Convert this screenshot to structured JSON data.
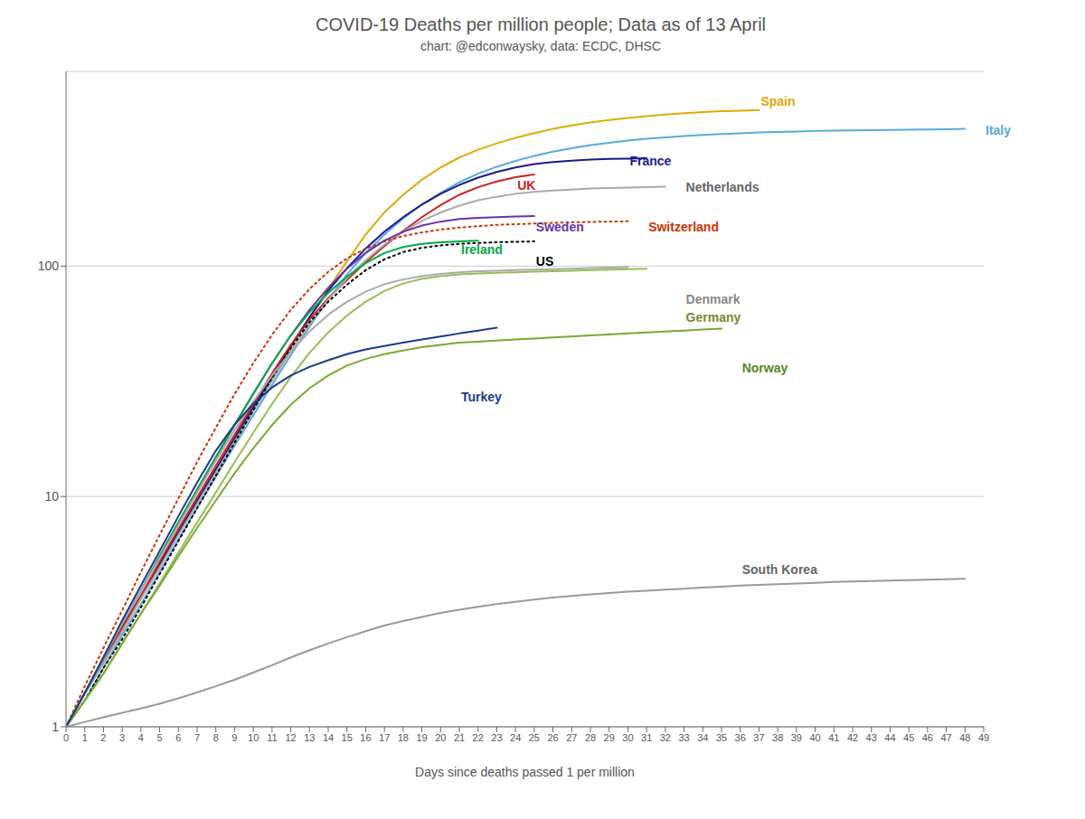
{
  "chart_data": {
    "type": "line",
    "title": "COVID-19 Deaths per million people; Data as of 13 April",
    "subtitle": "chart: @edconwaysky, data: ECDC, DHSC",
    "x_label": "Days since deaths passed 1 per million",
    "log": "y",
    "grid": true,
    "xlim": [
      0,
      49
    ],
    "xticks": [
      0,
      1,
      2,
      3,
      4,
      5,
      6,
      7,
      8,
      9,
      10,
      11,
      12,
      13,
      14,
      15,
      16,
      17,
      18,
      19,
      20,
      21,
      22,
      23,
      24,
      25,
      26,
      27,
      28,
      29,
      30,
      31,
      32,
      33,
      34,
      35,
      36,
      37,
      38,
      39,
      40,
      41,
      42,
      43,
      44,
      45,
      46,
      47,
      48,
      49
    ],
    "ylim": [
      1,
      700
    ],
    "yticks": [
      1,
      10,
      100
    ],
    "x": [
      0,
      1,
      2,
      3,
      4,
      5,
      6,
      7,
      8,
      9,
      10,
      11,
      12,
      13,
      14,
      15,
      16,
      17,
      18,
      19,
      20,
      21,
      22,
      23,
      24,
      25,
      26,
      27,
      28,
      29,
      30,
      31,
      32,
      33,
      34,
      35,
      36,
      37,
      38,
      39,
      40,
      41,
      42,
      43,
      44,
      45,
      46,
      47,
      48
    ],
    "series": [
      {
        "name": "Spain",
        "color": "#ddaa00",
        "line_style": "solid",
        "values": [
          1.0,
          1.4,
          1.9,
          2.6,
          3.6,
          5.0,
          6.9,
          9.5,
          13.0,
          17.8,
          24.3,
          32.9,
          44.3,
          59.5,
          79.5,
          105.0,
          137.0,
          171.0,
          204.0,
          237.0,
          268.0,
          296.0,
          320.0,
          341.0,
          360.0,
          378.0,
          394.0,
          408.0,
          420.0,
          431.0,
          440.0,
          448.0,
          455.0,
          461.0,
          466.0,
          470.0,
          473.0,
          476.0,
          null,
          null,
          null,
          null,
          null,
          null,
          null,
          null,
          null,
          null,
          null
        ]
      },
      {
        "name": "Italy",
        "color": "#55aadd",
        "line_style": "solid",
        "values": [
          1.0,
          1.3,
          1.8,
          2.5,
          3.4,
          4.7,
          6.5,
          8.9,
          12.2,
          16.6,
          22.5,
          30.5,
          41.0,
          54.5,
          71.5,
          92.0,
          114.0,
          137.0,
          161.0,
          185.0,
          208.0,
          231.0,
          252.0,
          270.0,
          286.0,
          301.0,
          314.0,
          325.0,
          335.0,
          343.0,
          351.0,
          357.0,
          362.0,
          367.0,
          371.0,
          374.0,
          377.0,
          380.0,
          382.0,
          384.0,
          386.0,
          387.0,
          388.0,
          389.0,
          390.0,
          391.0,
          392.0,
          393.0,
          394.0
        ]
      },
      {
        "name": "France",
        "color": "#1a1a8e",
        "line_style": "solid",
        "values": [
          1.0,
          1.4,
          1.9,
          2.7,
          3.7,
          5.1,
          7.0,
          9.6,
          13.1,
          17.9,
          24.4,
          33.2,
          45.0,
          60.0,
          78.0,
          98.0,
          119.0,
          141.0,
          163.0,
          185.0,
          206.0,
          225.0,
          242.0,
          256.0,
          268.0,
          277.0,
          283.0,
          287.0,
          290.0,
          292.0,
          293.0,
          294.0,
          null,
          null,
          null,
          null,
          null,
          null,
          null,
          null,
          null,
          null,
          null,
          null,
          null,
          null,
          null,
          null,
          null
        ]
      },
      {
        "name": "UK",
        "color": "#cc2222",
        "line_style": "solid",
        "values": [
          1.0,
          1.4,
          1.9,
          2.7,
          3.7,
          5.2,
          7.2,
          9.9,
          13.6,
          18.5,
          25.2,
          34.2,
          45.5,
          58.5,
          72.5,
          87.0,
          104.0,
          122.0,
          142.0,
          163.0,
          184.0,
          204.0,
          220.0,
          233.0,
          243.0,
          250.0,
          null,
          null,
          null,
          null,
          null,
          null,
          null,
          null,
          null,
          null,
          null,
          null,
          null,
          null,
          null,
          null,
          null,
          null,
          null,
          null,
          null,
          null,
          null
        ]
      },
      {
        "name": "Netherlands",
        "color": "#aaaaaa",
        "line_style": "solid",
        "values": [
          1.0,
          1.4,
          1.9,
          2.6,
          3.6,
          4.9,
          6.8,
          9.3,
          12.7,
          17.3,
          23.5,
          31.8,
          42.5,
          56.0,
          71.5,
          88.5,
          106.0,
          124.0,
          141.0,
          157.0,
          171.0,
          183.0,
          193.0,
          200.0,
          206.0,
          210.0,
          213.0,
          215.0,
          217.0,
          218.0,
          219.0,
          220.0,
          221.0,
          null,
          null,
          null,
          null,
          null,
          null,
          null,
          null,
          null,
          null,
          null,
          null,
          null,
          null,
          null,
          null
        ]
      },
      {
        "name": "Switzerland",
        "color": "#cc3300",
        "line_style": "dotted",
        "values": [
          1.0,
          1.5,
          2.2,
          3.2,
          4.7,
          6.8,
          9.8,
          14.1,
          19.9,
          27.8,
          37.9,
          50.3,
          64.5,
          79.5,
          94.5,
          108.0,
          119.0,
          128.0,
          135.0,
          140.0,
          144.0,
          147.0,
          149.0,
          151.0,
          152.0,
          153.0,
          154.0,
          155.0,
          155.5,
          156.0,
          156.5,
          null,
          null,
          null,
          null,
          null,
          null,
          null,
          null,
          null,
          null,
          null,
          null,
          null,
          null,
          null,
          null,
          null,
          null
        ]
      },
      {
        "name": "Sweden",
        "color": "#6633aa",
        "line_style": "solid",
        "values": [
          1.0,
          1.4,
          2.0,
          2.8,
          3.9,
          5.5,
          7.7,
          10.7,
          14.8,
          20.4,
          27.9,
          37.8,
          50.0,
          64.5,
          80.5,
          97.5,
          114.0,
          129.0,
          141.0,
          150.0,
          156.0,
          160.0,
          162.0,
          163.0,
          164.0,
          165.0,
          null,
          null,
          null,
          null,
          null,
          null,
          null,
          null,
          null,
          null,
          null,
          null,
          null,
          null,
          null,
          null,
          null,
          null,
          null,
          null,
          null,
          null,
          null
        ]
      },
      {
        "name": "Ireland",
        "color": "#00aa44",
        "line_style": "solid",
        "values": [
          1.0,
          1.4,
          2.0,
          2.8,
          3.9,
          5.5,
          7.7,
          10.7,
          14.8,
          20.4,
          27.9,
          37.8,
          50.0,
          63.0,
          76.5,
          90.0,
          103.0,
          114.0,
          121.0,
          125.0,
          127.0,
          128.0,
          129.0,
          null,
          null,
          null,
          null,
          null,
          null,
          null,
          null,
          null,
          null,
          null,
          null,
          null,
          null,
          null,
          null,
          null,
          null,
          null,
          null,
          null,
          null,
          null,
          null,
          null,
          null
        ]
      },
      {
        "name": "US",
        "color": "#000000",
        "line_style": "dotted",
        "values": [
          1.0,
          1.3,
          1.8,
          2.4,
          3.3,
          4.6,
          6.4,
          8.9,
          12.3,
          17.1,
          23.7,
          32.7,
          44.0,
          57.0,
          70.0,
          83.0,
          96.0,
          107.0,
          115.0,
          120.0,
          123.0,
          125.0,
          126.0,
          127.0,
          127.5,
          128.0,
          null,
          null,
          null,
          null,
          null,
          null,
          null,
          null,
          null,
          null,
          null,
          null,
          null,
          null,
          null,
          null,
          null,
          null,
          null,
          null,
          null,
          null,
          null
        ]
      },
      {
        "name": "Denmark",
        "color": "#aaaaaa",
        "line_style": "solid",
        "values": [
          1.0,
          1.4,
          2.0,
          2.8,
          3.9,
          5.4,
          7.5,
          10.4,
          14.3,
          19.4,
          25.8,
          33.5,
          42.5,
          52.0,
          61.5,
          70.0,
          77.5,
          83.5,
          87.5,
          90.5,
          92.5,
          94.0,
          95.0,
          95.5,
          96.0,
          96.5,
          97.0,
          97.5,
          98.0,
          98.5,
          99.0,
          null,
          null,
          null,
          null,
          null,
          null,
          null,
          null,
          null,
          null,
          null,
          null,
          null,
          null,
          null,
          null,
          null,
          null
        ]
      },
      {
        "name": "Germany",
        "color": "#99bb55",
        "line_style": "solid",
        "values": [
          1.0,
          1.3,
          1.7,
          2.3,
          3.1,
          4.2,
          5.7,
          7.7,
          10.4,
          14.1,
          18.9,
          25.2,
          33.0,
          42.0,
          51.5,
          61.0,
          70.0,
          78.0,
          84.0,
          88.0,
          90.5,
          92.0,
          93.0,
          93.5,
          94.0,
          94.5,
          95.0,
          95.5,
          96.0,
          96.5,
          97.0,
          97.5,
          null,
          null,
          null,
          null,
          null,
          null,
          null,
          null,
          null,
          null,
          null,
          null,
          null,
          null,
          null,
          null,
          null
        ]
      },
      {
        "name": "Norway",
        "color": "#77aa33",
        "line_style": "solid",
        "values": [
          1.0,
          1.3,
          1.7,
          2.3,
          3.1,
          4.1,
          5.5,
          7.3,
          9.6,
          12.6,
          16.2,
          20.4,
          25.0,
          29.5,
          33.5,
          37.0,
          39.5,
          41.5,
          43.0,
          44.5,
          45.5,
          46.5,
          47.0,
          47.5,
          48.0,
          48.5,
          49.0,
          49.5,
          50.0,
          50.5,
          51.0,
          51.5,
          52.0,
          52.5,
          53.0,
          53.5,
          null,
          null,
          null,
          null,
          null,
          null,
          null,
          null,
          null,
          null,
          null,
          null,
          null
        ]
      },
      {
        "name": "Turkey",
        "color": "#1a3a8e",
        "line_style": "solid",
        "values": [
          1.0,
          1.4,
          2.0,
          2.9,
          4.1,
          5.8,
          8.2,
          11.5,
          15.8,
          20.5,
          25.3,
          29.7,
          33.5,
          36.5,
          39.0,
          41.5,
          43.5,
          45.0,
          46.5,
          48.0,
          49.5,
          51.0,
          52.5,
          54.0,
          null,
          null,
          null,
          null,
          null,
          null,
          null,
          null,
          null,
          null,
          null,
          null,
          null,
          null,
          null,
          null,
          null,
          null,
          null,
          null,
          null,
          null,
          null,
          null,
          null
        ]
      },
      {
        "name": "South Korea",
        "color": "#999999",
        "line_style": "solid",
        "values": [
          1.0,
          1.05,
          1.1,
          1.15,
          1.2,
          1.26,
          1.33,
          1.41,
          1.5,
          1.6,
          1.72,
          1.85,
          2.0,
          2.15,
          2.3,
          2.45,
          2.6,
          2.75,
          2.88,
          3.0,
          3.12,
          3.22,
          3.32,
          3.41,
          3.49,
          3.57,
          3.64,
          3.7,
          3.76,
          3.81,
          3.86,
          3.9,
          3.94,
          3.98,
          4.02,
          4.06,
          4.1,
          4.13,
          4.16,
          4.19,
          4.22,
          4.25,
          4.27,
          4.29,
          4.31,
          4.33,
          4.35,
          4.37,
          4.39
        ]
      }
    ],
    "annotations": [
      {
        "text": "Spain",
        "x": 37,
        "y": 520,
        "color": "#ddaa00"
      },
      {
        "text": "Italy",
        "x": 49,
        "y": 390,
        "color": "#55aadd"
      },
      {
        "text": "France",
        "x": 30,
        "y": 285,
        "color": "#1a1a8e"
      },
      {
        "text": "UK",
        "x": 24,
        "y": 225,
        "color": "#cc2222"
      },
      {
        "text": "Netherlands",
        "x": 33,
        "y": 220,
        "color": "#666666"
      },
      {
        "text": "Switzerland",
        "x": 31,
        "y": 148,
        "color": "#cc3300"
      },
      {
        "text": "Sweden",
        "x": 25,
        "y": 148,
        "color": "#6633aa"
      },
      {
        "text": "Ireland",
        "x": 21,
        "y": 118,
        "color": "#00aa44"
      },
      {
        "text": "US",
        "x": 25,
        "y": 105,
        "color": "#000000"
      },
      {
        "text": "Denmark",
        "x": 33,
        "y": 72,
        "color": "#888888"
      },
      {
        "text": "Germany",
        "x": 33,
        "y": 60,
        "color": "#778833"
      },
      {
        "text": "Norway",
        "x": 36,
        "y": 36,
        "color": "#558822"
      },
      {
        "text": "Turkey",
        "x": 21,
        "y": 27,
        "color": "#1a3a8e"
      },
      {
        "text": "South Korea",
        "x": 36,
        "y": 4.8,
        "color": "#666666"
      }
    ]
  }
}
